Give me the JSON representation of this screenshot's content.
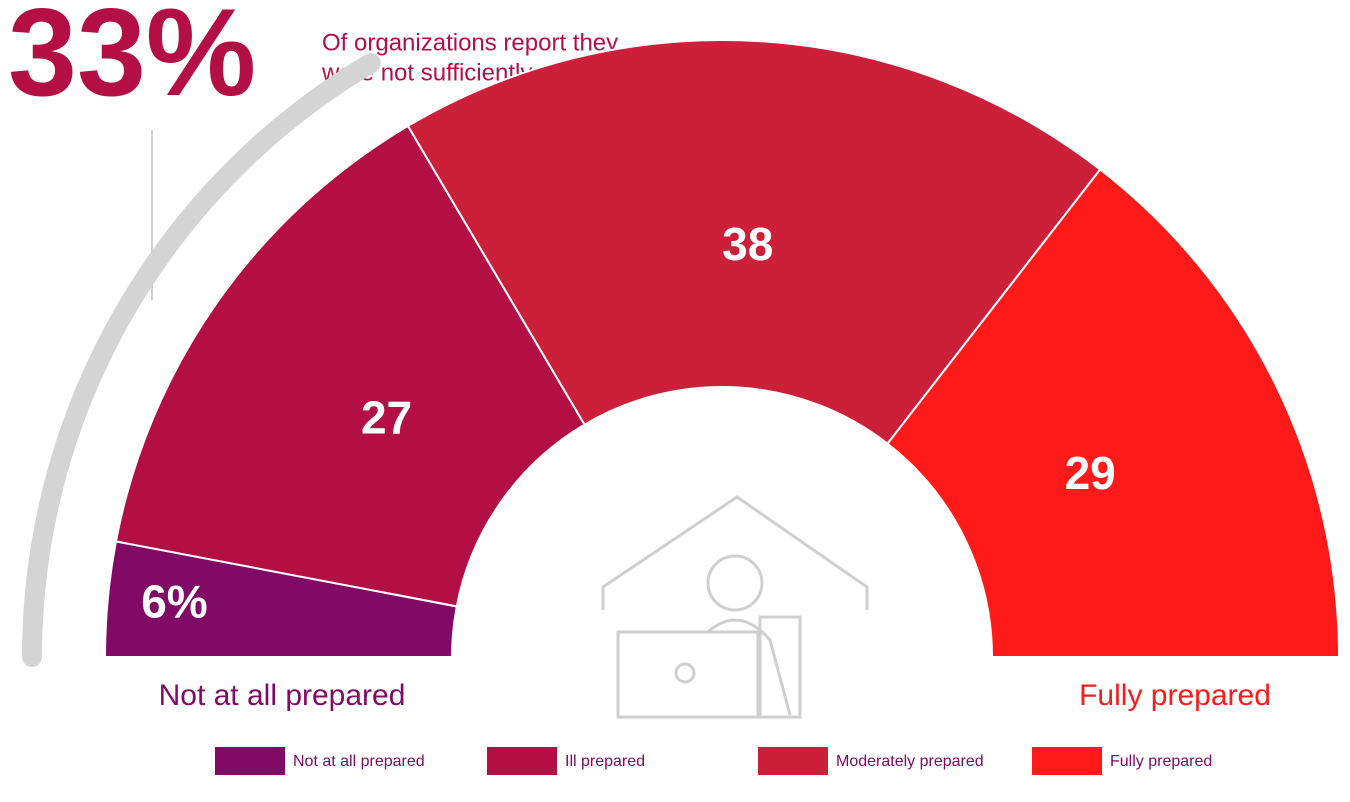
{
  "chart_data": {
    "type": "semi-donut",
    "categories": [
      "Not at all prepared",
      "Ill prepared",
      "Moderately prepared",
      "Fully prepared"
    ],
    "values": [
      6,
      27,
      38,
      29
    ],
    "value_labels": [
      "6%",
      "27",
      "38",
      "29"
    ],
    "colors": [
      "#800a66",
      "#b30f45",
      "#cc1f3a",
      "#ff1a1a"
    ],
    "annotation": {
      "value": 33,
      "label": "33%",
      "text_lines": [
        "Of organizations report they",
        "were not sufficiently prepared."
      ]
    }
  }
}
